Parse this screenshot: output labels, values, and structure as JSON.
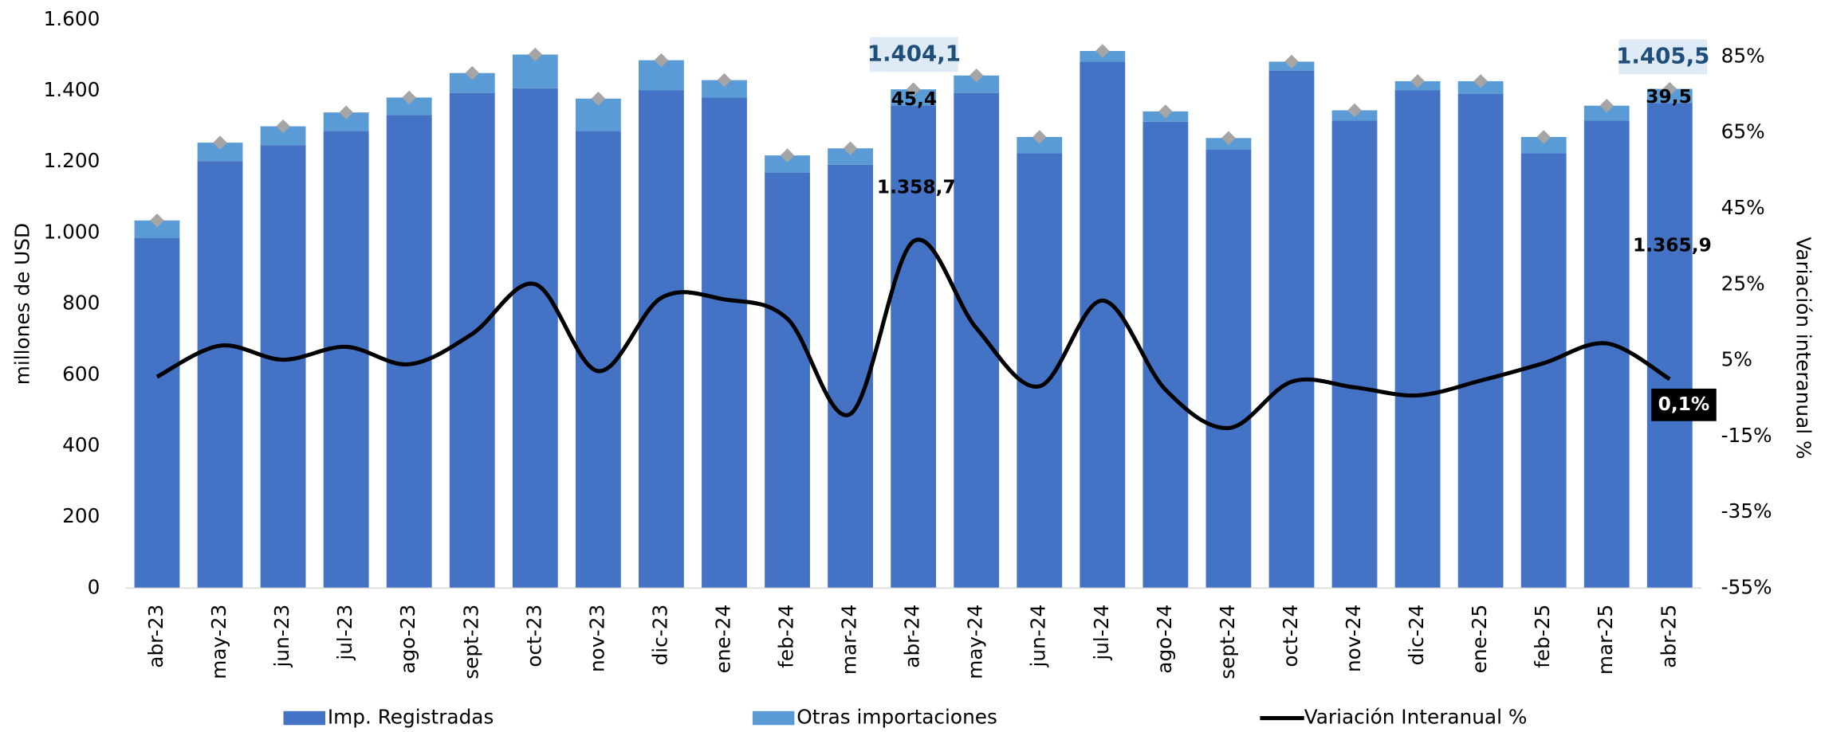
{
  "chart_data": {
    "type": "bar",
    "y_label": "millones de  USD",
    "y2_label": "Variación  interanual %",
    "categories": [
      "abr-23",
      "may-23",
      "jun-23",
      "jul-23",
      "ago-23",
      "sept-23",
      "oct-23",
      "nov-23",
      "dic-23",
      "ene-24",
      "feb-24",
      "mar-24",
      "abr-24",
      "may-24",
      "jun-24",
      "jul-24",
      "ago-24",
      "sept-24",
      "oct-24",
      "nov-24",
      "dic-24",
      "ene-25",
      "feb-25",
      "mar-25",
      "abr-25"
    ],
    "series": [
      {
        "name": "Imp. Registradas",
        "color": "#4472c4",
        "values": [
          986,
          1202,
          1247,
          1287,
          1332,
          1394,
          1407,
          1287,
          1401,
          1381,
          1169,
          1192,
          1358.7,
          1394,
          1224,
          1482,
          1313,
          1234,
          1456,
          1316,
          1401,
          1391,
          1224,
          1316,
          1365.9
        ]
      },
      {
        "name": "Otras importaciones",
        "color": "#5b9bd5",
        "values": [
          49,
          52,
          53,
          52,
          49,
          56,
          95,
          91,
          85,
          49,
          49,
          46,
          45.4,
          49,
          46,
          30,
          29,
          33,
          26,
          29,
          26,
          36,
          46,
          42,
          39.5
        ]
      },
      {
        "name": "Variación Interanual %",
        "color": "#000000",
        "axis": "y2",
        "type": "line",
        "values": [
          0.7,
          8.9,
          5.2,
          8.6,
          4.0,
          12,
          25.1,
          2.2,
          21.5,
          21.1,
          16,
          -9.1,
          36.4,
          13.5,
          -1.8,
          20.8,
          -2.7,
          -12.8,
          -0.6,
          -2.1,
          -4.2,
          -0.3,
          4.3,
          9.5,
          0.1
        ]
      }
    ],
    "marker_color": "#a5a5a5",
    "annotations": [
      "1.404,1",
      "45,4",
      "1.358,7",
      "1.405,5",
      "39,5",
      "1.365,9",
      "0,1%"
    ],
    "ylim": [
      0,
      1600
    ],
    "yticks": [
      0,
      200,
      400,
      600,
      800,
      {
        "value": 1000,
        "label": "1.000"
      },
      {
        "value": 1200,
        "label": "1.200"
      },
      {
        "value": 1400,
        "label": "1.400"
      },
      {
        "value": 1600,
        "label": "1.600"
      }
    ],
    "y2lim": [
      -55,
      94.8
    ],
    "y2ticks": [
      {
        "value": -55,
        "label": "-55%"
      },
      {
        "value": -35,
        "label": "-35%"
      },
      {
        "value": -15,
        "label": "-15%"
      },
      {
        "value": 5,
        "label": "5%"
      },
      {
        "value": 25,
        "label": "25%"
      },
      {
        "value": 45,
        "label": "45%"
      },
      {
        "value": 65,
        "label": "65%"
      },
      {
        "value": 85,
        "label": "85%"
      }
    ],
    "grid": false,
    "legend": "bottom"
  }
}
